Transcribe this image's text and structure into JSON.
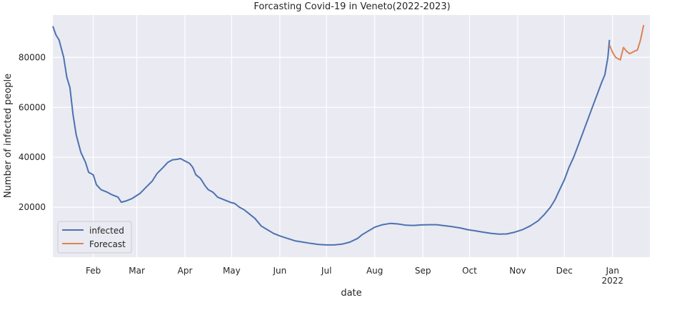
{
  "chart_data": {
    "type": "line",
    "title": "Forcasting Covid-19 in Veneto(2022-2023)",
    "xlabel": "date",
    "ylabel": "Number of infected people",
    "xlim": [
      "2021-01-06",
      "2022-01-25"
    ],
    "ylim": [
      0,
      97000
    ],
    "y_ticks": [
      20000,
      40000,
      60000,
      80000
    ],
    "y_tick_labels": [
      "20000",
      "40000",
      "60000",
      "80000"
    ],
    "x_ticks": [
      {
        "date": "2021-02-01",
        "label": "Feb",
        "sublabel": ""
      },
      {
        "date": "2021-03-01",
        "label": "Mar",
        "sublabel": ""
      },
      {
        "date": "2021-04-01",
        "label": "Apr",
        "sublabel": ""
      },
      {
        "date": "2021-05-01",
        "label": "May",
        "sublabel": ""
      },
      {
        "date": "2021-06-01",
        "label": "Jun",
        "sublabel": ""
      },
      {
        "date": "2021-07-01",
        "label": "Jul",
        "sublabel": ""
      },
      {
        "date": "2021-08-01",
        "label": "Aug",
        "sublabel": ""
      },
      {
        "date": "2021-09-01",
        "label": "Sep",
        "sublabel": ""
      },
      {
        "date": "2021-10-01",
        "label": "Oct",
        "sublabel": ""
      },
      {
        "date": "2021-11-01",
        "label": "Nov",
        "sublabel": ""
      },
      {
        "date": "2021-12-01",
        "label": "Dec",
        "sublabel": ""
      },
      {
        "date": "2022-01-01",
        "label": "Jan",
        "sublabel": "2022"
      }
    ],
    "grid": true,
    "background": "#eaeaf2",
    "legend_position": "lower-left",
    "series": [
      {
        "name": "infected",
        "color": "#4c72b0",
        "points": [
          [
            "2021-01-06",
            92500
          ],
          [
            "2021-01-08",
            89000
          ],
          [
            "2021-01-10",
            87000
          ],
          [
            "2021-01-13",
            80000
          ],
          [
            "2021-01-15",
            72000
          ],
          [
            "2021-01-17",
            68000
          ],
          [
            "2021-01-19",
            57000
          ],
          [
            "2021-01-21",
            49000
          ],
          [
            "2021-01-24",
            42000
          ],
          [
            "2021-01-27",
            38000
          ],
          [
            "2021-01-29",
            34000
          ],
          [
            "2021-02-01",
            33000
          ],
          [
            "2021-02-03",
            29000
          ],
          [
            "2021-02-06",
            27000
          ],
          [
            "2021-02-10",
            26000
          ],
          [
            "2021-02-13",
            25000
          ],
          [
            "2021-02-17",
            24000
          ],
          [
            "2021-02-19",
            22000
          ],
          [
            "2021-02-22",
            22500
          ],
          [
            "2021-02-26",
            23500
          ],
          [
            "2021-03-03",
            25500
          ],
          [
            "2021-03-07",
            28000
          ],
          [
            "2021-03-11",
            30500
          ],
          [
            "2021-03-14",
            33500
          ],
          [
            "2021-03-18",
            36000
          ],
          [
            "2021-03-21",
            38000
          ],
          [
            "2021-03-24",
            39000
          ],
          [
            "2021-03-27",
            39200
          ],
          [
            "2021-03-29",
            39500
          ],
          [
            "2021-04-01",
            38500
          ],
          [
            "2021-04-04",
            37500
          ],
          [
            "2021-04-06",
            36000
          ],
          [
            "2021-04-08",
            33000
          ],
          [
            "2021-04-11",
            31500
          ],
          [
            "2021-04-14",
            28500
          ],
          [
            "2021-04-16",
            27000
          ],
          [
            "2021-04-19",
            26000
          ],
          [
            "2021-04-22",
            24000
          ],
          [
            "2021-04-26",
            23000
          ],
          [
            "2021-04-30",
            22000
          ],
          [
            "2021-05-03",
            21500
          ],
          [
            "2021-05-06",
            20000
          ],
          [
            "2021-05-09",
            19000
          ],
          [
            "2021-05-12",
            17500
          ],
          [
            "2021-05-16",
            15500
          ],
          [
            "2021-05-20",
            12500
          ],
          [
            "2021-05-24",
            11000
          ],
          [
            "2021-05-28",
            9500
          ],
          [
            "2021-06-01",
            8500
          ],
          [
            "2021-06-06",
            7500
          ],
          [
            "2021-06-11",
            6500
          ],
          [
            "2021-06-16",
            6000
          ],
          [
            "2021-06-21",
            5500
          ],
          [
            "2021-06-26",
            5100
          ],
          [
            "2021-07-01",
            4900
          ],
          [
            "2021-07-06",
            4900
          ],
          [
            "2021-07-11",
            5200
          ],
          [
            "2021-07-16",
            6000
          ],
          [
            "2021-07-21",
            7500
          ],
          [
            "2021-07-24",
            9000
          ],
          [
            "2021-07-28",
            10500
          ],
          [
            "2021-08-01",
            12000
          ],
          [
            "2021-08-06",
            13000
          ],
          [
            "2021-08-11",
            13500
          ],
          [
            "2021-08-16",
            13300
          ],
          [
            "2021-08-21",
            12800
          ],
          [
            "2021-08-26",
            12700
          ],
          [
            "2021-08-31",
            12900
          ],
          [
            "2021-09-05",
            13000
          ],
          [
            "2021-09-10",
            13000
          ],
          [
            "2021-09-15",
            12600
          ],
          [
            "2021-09-20",
            12200
          ],
          [
            "2021-09-25",
            11700
          ],
          [
            "2021-09-30",
            11000
          ],
          [
            "2021-10-05",
            10500
          ],
          [
            "2021-10-10",
            10000
          ],
          [
            "2021-10-15",
            9500
          ],
          [
            "2021-10-20",
            9200
          ],
          [
            "2021-10-25",
            9300
          ],
          [
            "2021-10-30",
            10000
          ],
          [
            "2021-11-04",
            11000
          ],
          [
            "2021-11-09",
            12500
          ],
          [
            "2021-11-14",
            14500
          ],
          [
            "2021-11-18",
            17000
          ],
          [
            "2021-11-22",
            20000
          ],
          [
            "2021-11-25",
            23000
          ],
          [
            "2021-11-28",
            27000
          ],
          [
            "2021-12-01",
            31000
          ],
          [
            "2021-12-04",
            36000
          ],
          [
            "2021-12-07",
            40000
          ],
          [
            "2021-12-10",
            45000
          ],
          [
            "2021-12-13",
            50000
          ],
          [
            "2021-12-16",
            55000
          ],
          [
            "2021-12-19",
            60000
          ],
          [
            "2021-12-22",
            65000
          ],
          [
            "2021-12-25",
            70000
          ],
          [
            "2021-12-27",
            73000
          ],
          [
            "2021-12-29",
            80000
          ],
          [
            "2021-12-30",
            87000
          ]
        ]
      },
      {
        "name": "Forecast",
        "color": "#dd8452",
        "points": [
          [
            "2021-12-30",
            85000
          ],
          [
            "2022-01-01",
            82000
          ],
          [
            "2022-01-03",
            80000
          ],
          [
            "2022-01-06",
            79000
          ],
          [
            "2022-01-08",
            84000
          ],
          [
            "2022-01-10",
            82500
          ],
          [
            "2022-01-12",
            81500
          ],
          [
            "2022-01-15",
            82500
          ],
          [
            "2022-01-17",
            83000
          ],
          [
            "2022-01-19",
            87000
          ],
          [
            "2022-01-21",
            93000
          ]
        ]
      }
    ]
  }
}
